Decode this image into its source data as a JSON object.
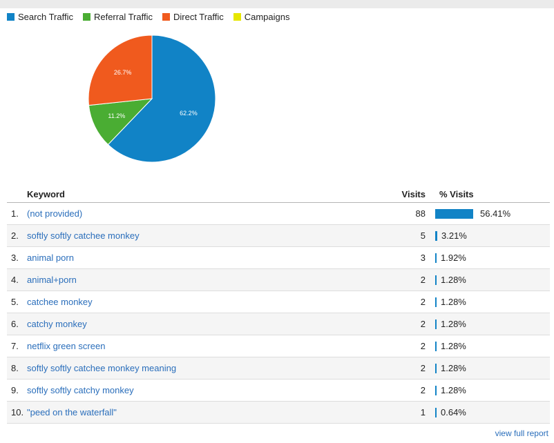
{
  "legend": [
    {
      "label": "Search Traffic",
      "color": "#1183c6"
    },
    {
      "label": "Referral Traffic",
      "color": "#4aad33"
    },
    {
      "label": "Direct Traffic",
      "color": "#f05a1e"
    },
    {
      "label": "Campaigns",
      "color": "#e6e600"
    }
  ],
  "pie": {
    "slices": [
      {
        "label": "62.2%",
        "value": 62.2,
        "color": "#1183c6"
      },
      {
        "label": "11.2%",
        "value": 11.2,
        "color": "#4aad33"
      },
      {
        "label": "26.7%",
        "value": 26.7,
        "color": "#f05a1e"
      }
    ]
  },
  "table": {
    "headers": {
      "keyword": "Keyword",
      "visits": "Visits",
      "pct": "% Visits"
    },
    "rows": [
      {
        "rank": "1.",
        "keyword": "(not provided)",
        "visits": "88",
        "pct": "56.41%",
        "pct_value": 56.41
      },
      {
        "rank": "2.",
        "keyword": "softly softly catchee monkey",
        "visits": "5",
        "pct": "3.21%",
        "pct_value": 3.21
      },
      {
        "rank": "3.",
        "keyword": "animal porn",
        "visits": "3",
        "pct": "1.92%",
        "pct_value": 1.92
      },
      {
        "rank": "4.",
        "keyword": "animal+porn",
        "visits": "2",
        "pct": "1.28%",
        "pct_value": 1.28
      },
      {
        "rank": "5.",
        "keyword": "catchee monkey",
        "visits": "2",
        "pct": "1.28%",
        "pct_value": 1.28
      },
      {
        "rank": "6.",
        "keyword": "catchy monkey",
        "visits": "2",
        "pct": "1.28%",
        "pct_value": 1.28
      },
      {
        "rank": "7.",
        "keyword": "netflix green screen",
        "visits": "2",
        "pct": "1.28%",
        "pct_value": 1.28
      },
      {
        "rank": "8.",
        "keyword": "softly softly catchee monkey meaning",
        "visits": "2",
        "pct": "1.28%",
        "pct_value": 1.28
      },
      {
        "rank": "9.",
        "keyword": "softly softly catchy monkey",
        "visits": "2",
        "pct": "1.28%",
        "pct_value": 1.28
      },
      {
        "rank": "10.",
        "keyword": "\"peed on the waterfall\"",
        "visits": "1",
        "pct": "0.64%",
        "pct_value": 0.64
      }
    ]
  },
  "footer": {
    "view_full_report": "view full report"
  }
}
